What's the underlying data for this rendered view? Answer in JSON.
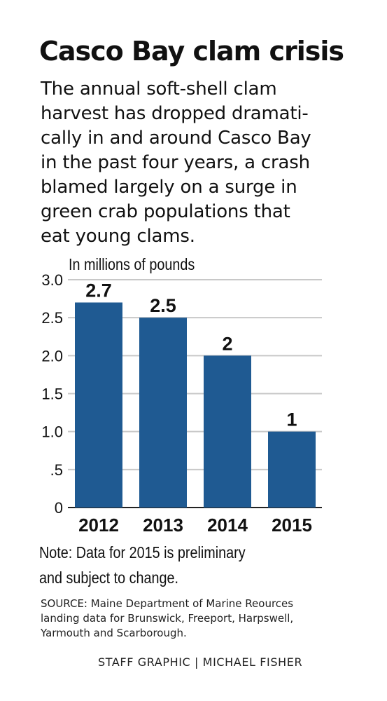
{
  "title": "Casco Bay clam crisis",
  "intro": [
    "The annual soft-shell clam",
    "harvest has dropped dramati-",
    "cally in and around Casco Bay",
    "in the past four years, a crash",
    "blamed largely on a surge in",
    "green crab populations that",
    "eat young clams."
  ],
  "note": [
    "Note: Data for 2015 is preliminary",
    "and subject to change."
  ],
  "source": [
    "SOURCE: Maine Department of Marine Reources",
    "landing data for Brunswick, Freeport, Harpswell,",
    "Yarmouth and Scarborough."
  ],
  "credit": "STAFF GRAPHIC | MICHAEL FISHER",
  "colors": {
    "bar": "#1f5a92",
    "grid": "#c8c8c8",
    "axis": "#222222",
    "text": "#111111"
  },
  "chart_data": {
    "type": "bar",
    "ylabel": "In millions of pounds",
    "categories": [
      "2012",
      "2013",
      "2014",
      "2015"
    ],
    "values": [
      2.7,
      2.5,
      2,
      1
    ],
    "data_labels": [
      "2.7",
      "2.5",
      "2",
      "1"
    ],
    "yticks": [
      0,
      0.5,
      1.0,
      1.5,
      2.0,
      2.5,
      3.0
    ],
    "ytick_labels": [
      "0",
      ".5",
      "1.0",
      "1.5",
      "2.0",
      "2.5",
      "3.0"
    ],
    "ylim": [
      0,
      3.0
    ],
    "grid": true,
    "legend": "none"
  }
}
